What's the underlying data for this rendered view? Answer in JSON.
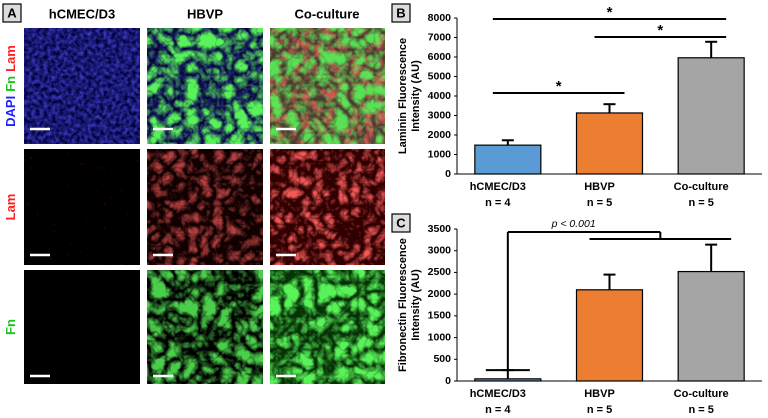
{
  "panel_a": {
    "panel_label": "A",
    "columns": [
      "hCMEC/D3",
      "HBVP",
      "Co-culture"
    ],
    "row_labels": [
      [
        {
          "text": "DAPI",
          "color": "#2020ff"
        },
        {
          "text": "Fn",
          "color": "#20c020"
        },
        {
          "text": "Lam",
          "color": "#ff2020"
        }
      ],
      [
        {
          "text": "Lam",
          "color": "#ff2020"
        }
      ],
      [
        {
          "text": "Fn",
          "color": "#20c020"
        }
      ]
    ]
  },
  "chart_data": [
    {
      "type": "bar",
      "panel_label": "B",
      "ylabel": [
        "Laminin Fluorescence",
        "Intensity (AU)"
      ],
      "categories": [
        "hCMEC/D3",
        "HBVP",
        "Co-culture"
      ],
      "sample_sizes": [
        "n = 4",
        "n = 5",
        "n = 5"
      ],
      "values": [
        1480,
        3130,
        5960
      ],
      "errors": [
        250,
        450,
        820
      ],
      "colors": [
        "#5b9bd5",
        "#ed7d31",
        "#a5a5a5"
      ],
      "ylim": [
        0,
        8000
      ],
      "yticks": [
        0,
        1000,
        2000,
        3000,
        4000,
        5000,
        6000,
        7000,
        8000
      ],
      "significance": [
        "*",
        "*",
        "*"
      ]
    },
    {
      "type": "bar",
      "panel_label": "C",
      "ylabel": [
        "Fibronectin Fluorescence",
        "Intensity (AU)"
      ],
      "categories": [
        "hCMEC/D3",
        "HBVP",
        "Co-culture"
      ],
      "sample_sizes": [
        "n = 4",
        "n = 5",
        "n = 5"
      ],
      "values": [
        50,
        2100,
        2520
      ],
      "errors": [
        200,
        350,
        620
      ],
      "colors": [
        "#5b9bd5",
        "#ed7d31",
        "#a5a5a5"
      ],
      "ylim": [
        0,
        3500
      ],
      "yticks": [
        0,
        500,
        1000,
        1500,
        2000,
        2500,
        3000,
        3500
      ],
      "significance": [
        "p < 0.001"
      ]
    }
  ]
}
